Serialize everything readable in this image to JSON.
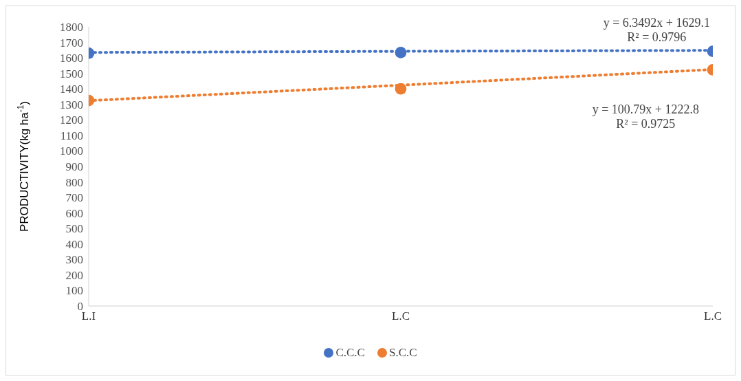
{
  "chart_data": {
    "type": "scatter",
    "ylabel": "PRODUCTIVITY(kg ha$^{-1}$)",
    "categories": [
      "L.I",
      "L.C",
      "L.C"
    ],
    "ylim": [
      0,
      1800
    ],
    "yticks": [
      0,
      100,
      200,
      300,
      400,
      500,
      600,
      700,
      800,
      900,
      1000,
      1100,
      1200,
      1300,
      1400,
      1500,
      1600,
      1700,
      1800
    ],
    "series": [
      {
        "name": "C.C.C",
        "color": "#4472c4",
        "values": [
          1630,
          1634,
          1642
        ]
      },
      {
        "name": "S.C.C",
        "color": "#ed7d31",
        "values": [
          1325,
          1400,
          1523
        ]
      },
      {
        "type": "line",
        "color": "#4472c4",
        "values": [
          1635,
          1642,
          1648
        ],
        "line_style": "dotted",
        "marker": "none"
      },
      {
        "type": "line",
        "color": "#ed7d31",
        "values": [
          1324,
          1424,
          1525
        ],
        "line_style": "dotted",
        "marker": "none"
      }
    ],
    "marker": "circle",
    "legend": "bottom",
    "grid": false,
    "annotations": [
      "y = 6.3492x + 1629.1\nR² = 0.9796",
      "y = 100.79x + 1222.8\nR² = 0.9725"
    ]
  }
}
